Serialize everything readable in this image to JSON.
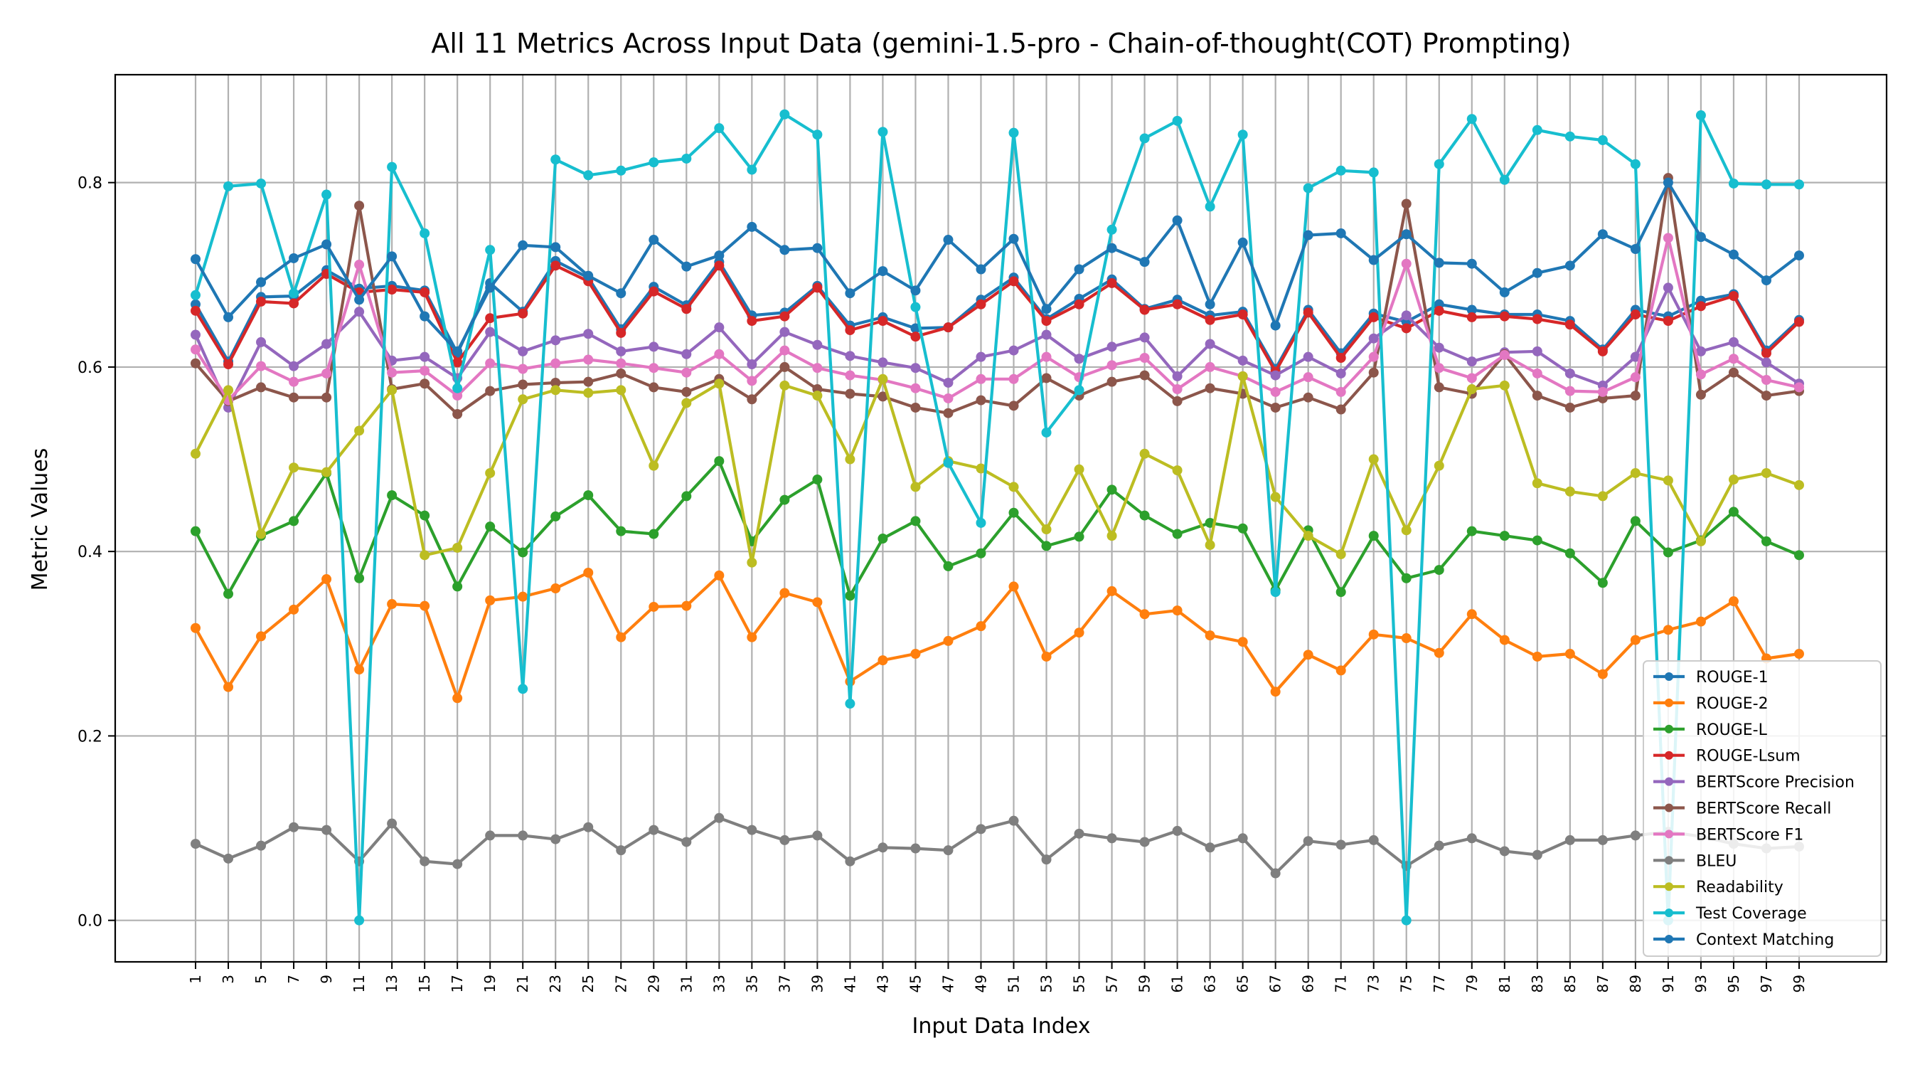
{
  "chart_data": {
    "type": "line",
    "title": "All 11 Metrics Across Input Data (gemini-1.5-pro - Chain-of-thought(COT) Prompting)",
    "xlabel": "Input Data Index",
    "ylabel": "Metric Values",
    "ylim": [
      -0.045,
      0.917
    ],
    "yticks": [
      0.0,
      0.2,
      0.4,
      0.6,
      0.8
    ],
    "ytick_labels": [
      "0.0",
      "0.2",
      "0.4",
      "0.6",
      "0.8"
    ],
    "grid": true,
    "legend_position": "lower-right",
    "x": [
      1,
      3,
      5,
      7,
      9,
      11,
      13,
      15,
      17,
      19,
      21,
      23,
      25,
      27,
      29,
      31,
      33,
      35,
      37,
      39,
      41,
      43,
      45,
      47,
      49,
      51,
      53,
      55,
      57,
      59,
      61,
      63,
      65,
      67,
      69,
      71,
      73,
      75,
      77,
      79,
      81,
      83,
      85,
      87,
      89,
      91,
      93,
      95,
      97,
      99
    ],
    "series": [
      {
        "name": "ROUGE-1",
        "color": "#1f77b4",
        "values": [
          0.668,
          0.606,
          0.676,
          0.677,
          0.705,
          0.685,
          0.688,
          0.683,
          0.615,
          0.691,
          0.66,
          0.715,
          0.697,
          0.641,
          0.687,
          0.667,
          0.714,
          0.656,
          0.659,
          0.688,
          0.645,
          0.654,
          0.642,
          0.643,
          0.673,
          0.697,
          0.652,
          0.674,
          0.695,
          0.663,
          0.673,
          0.656,
          0.66,
          0.598,
          0.662,
          0.615,
          0.658,
          0.649,
          0.668,
          0.662,
          0.657,
          0.657,
          0.65,
          0.619,
          0.662,
          0.655,
          0.672,
          0.679,
          0.618,
          0.651
        ]
      },
      {
        "name": "ROUGE-2",
        "color": "#ff7f0e",
        "values": [
          0.317,
          0.253,
          0.308,
          0.337,
          0.37,
          0.272,
          0.343,
          0.341,
          0.241,
          0.347,
          0.351,
          0.36,
          0.377,
          0.307,
          0.34,
          0.341,
          0.374,
          0.307,
          0.355,
          0.345,
          0.259,
          0.282,
          0.289,
          0.303,
          0.319,
          0.362,
          0.286,
          0.312,
          0.357,
          0.332,
          0.336,
          0.309,
          0.302,
          0.248,
          0.288,
          0.271,
          0.31,
          0.306,
          0.29,
          0.332,
          0.304,
          0.286,
          0.289,
          0.267,
          0.304,
          0.315,
          0.324,
          0.346,
          0.284,
          0.289
        ]
      },
      {
        "name": "ROUGE-L",
        "color": "#2ca02c",
        "values": [
          0.422,
          0.354,
          0.417,
          0.433,
          0.485,
          0.371,
          0.461,
          0.439,
          0.362,
          0.427,
          0.399,
          0.438,
          0.461,
          0.422,
          0.419,
          0.46,
          0.498,
          0.411,
          0.456,
          0.478,
          0.352,
          0.414,
          0.433,
          0.384,
          0.398,
          0.442,
          0.406,
          0.416,
          0.467,
          0.439,
          0.419,
          0.431,
          0.425,
          0.358,
          0.423,
          0.356,
          0.417,
          0.371,
          0.38,
          0.422,
          0.417,
          0.412,
          0.398,
          0.366,
          0.433,
          0.399,
          0.412,
          0.443,
          0.411,
          0.396
        ]
      },
      {
        "name": "ROUGE-Lsum",
        "color": "#d62728",
        "values": [
          0.661,
          0.603,
          0.671,
          0.669,
          0.701,
          0.681,
          0.684,
          0.681,
          0.605,
          0.653,
          0.658,
          0.71,
          0.693,
          0.637,
          0.682,
          0.663,
          0.71,
          0.65,
          0.655,
          0.686,
          0.64,
          0.65,
          0.633,
          0.643,
          0.668,
          0.693,
          0.65,
          0.668,
          0.691,
          0.662,
          0.668,
          0.651,
          0.657,
          0.595,
          0.659,
          0.61,
          0.654,
          0.642,
          0.661,
          0.654,
          0.655,
          0.652,
          0.646,
          0.617,
          0.657,
          0.65,
          0.666,
          0.677,
          0.615,
          0.649
        ]
      },
      {
        "name": "BERTScore Precision",
        "color": "#9467bd",
        "values": [
          0.635,
          0.556,
          0.627,
          0.601,
          0.625,
          0.66,
          0.607,
          0.611,
          0.588,
          0.638,
          0.617,
          0.629,
          0.636,
          0.617,
          0.622,
          0.614,
          0.643,
          0.603,
          0.638,
          0.624,
          0.612,
          0.605,
          0.599,
          0.583,
          0.611,
          0.618,
          0.635,
          0.609,
          0.622,
          0.632,
          0.59,
          0.625,
          0.607,
          0.591,
          0.611,
          0.593,
          0.631,
          0.656,
          0.621,
          0.606,
          0.616,
          0.617,
          0.593,
          0.58,
          0.611,
          0.686,
          0.617,
          0.627,
          0.605,
          0.582
        ]
      },
      {
        "name": "BERTScore Recall",
        "color": "#8c564b",
        "values": [
          0.604,
          0.563,
          0.578,
          0.567,
          0.567,
          0.775,
          0.576,
          0.582,
          0.549,
          0.574,
          0.581,
          0.583,
          0.584,
          0.593,
          0.578,
          0.573,
          0.587,
          0.565,
          0.6,
          0.576,
          0.571,
          0.568,
          0.556,
          0.55,
          0.564,
          0.558,
          0.588,
          0.569,
          0.584,
          0.591,
          0.563,
          0.577,
          0.571,
          0.556,
          0.567,
          0.554,
          0.594,
          0.777,
          0.578,
          0.571,
          0.614,
          0.569,
          0.556,
          0.566,
          0.569,
          0.805,
          0.57,
          0.594,
          0.569,
          0.574
        ]
      },
      {
        "name": "BERTScore F1",
        "color": "#e377c2",
        "values": [
          0.619,
          0.564,
          0.601,
          0.584,
          0.593,
          0.711,
          0.594,
          0.596,
          0.569,
          0.604,
          0.598,
          0.604,
          0.608,
          0.604,
          0.599,
          0.594,
          0.614,
          0.585,
          0.618,
          0.599,
          0.591,
          0.586,
          0.577,
          0.566,
          0.587,
          0.587,
          0.611,
          0.589,
          0.602,
          0.61,
          0.576,
          0.6,
          0.59,
          0.573,
          0.589,
          0.573,
          0.611,
          0.712,
          0.599,
          0.588,
          0.613,
          0.593,
          0.574,
          0.573,
          0.589,
          0.74,
          0.592,
          0.609,
          0.586,
          0.578
        ]
      },
      {
        "name": "BLEU",
        "color": "#7f7f7f",
        "values": [
          0.083,
          0.067,
          0.081,
          0.101,
          0.098,
          0.064,
          0.105,
          0.064,
          0.061,
          0.092,
          0.092,
          0.088,
          0.101,
          0.076,
          0.098,
          0.085,
          0.111,
          0.098,
          0.087,
          0.092,
          0.064,
          0.079,
          0.078,
          0.076,
          0.099,
          0.108,
          0.066,
          0.094,
          0.089,
          0.085,
          0.097,
          0.079,
          0.089,
          0.051,
          0.086,
          0.082,
          0.087,
          0.059,
          0.081,
          0.089,
          0.075,
          0.071,
          0.087,
          0.087,
          0.092,
          0.096,
          0.091,
          0.083,
          0.078,
          0.08
        ]
      },
      {
        "name": "Readability",
        "color": "#bcbd22",
        "values": [
          0.506,
          0.575,
          0.419,
          0.491,
          0.486,
          0.531,
          0.575,
          0.396,
          0.404,
          0.485,
          0.565,
          0.575,
          0.572,
          0.575,
          0.493,
          0.561,
          0.582,
          0.388,
          0.58,
          0.569,
          0.5,
          0.587,
          0.47,
          0.498,
          0.49,
          0.47,
          0.424,
          0.489,
          0.417,
          0.506,
          0.488,
          0.407,
          0.59,
          0.459,
          0.417,
          0.397,
          0.5,
          0.423,
          0.493,
          0.576,
          0.58,
          0.474,
          0.465,
          0.46,
          0.485,
          0.477,
          0.411,
          0.478,
          0.485,
          0.472
        ]
      },
      {
        "name": "Test Coverage",
        "color": "#17becf",
        "values": [
          0.678,
          0.796,
          0.799,
          0.68,
          0.787,
          0.0,
          0.817,
          0.745,
          0.577,
          0.727,
          0.251,
          0.825,
          0.808,
          0.813,
          0.822,
          0.826,
          0.859,
          0.814,
          0.874,
          0.852,
          0.235,
          0.855,
          0.665,
          0.496,
          0.431,
          0.854,
          0.529,
          0.575,
          0.749,
          0.848,
          0.867,
          0.774,
          0.852,
          0.356,
          0.794,
          0.813,
          0.811,
          0.0,
          0.82,
          0.869,
          0.803,
          0.857,
          0.85,
          0.846,
          0.82,
          0.0,
          0.873,
          0.799,
          0.798,
          0.798
        ]
      },
      {
        "name": "Context Matching",
        "color": "#1f77b4",
        "values": [
          0.717,
          0.654,
          0.692,
          0.718,
          0.733,
          0.673,
          0.72,
          0.655,
          0.617,
          0.686,
          0.732,
          0.73,
          0.699,
          0.68,
          0.738,
          0.709,
          0.721,
          0.752,
          0.727,
          0.729,
          0.68,
          0.704,
          0.683,
          0.738,
          0.706,
          0.739,
          0.663,
          0.706,
          0.729,
          0.714,
          0.759,
          0.668,
          0.735,
          0.645,
          0.743,
          0.745,
          0.716,
          0.744,
          0.713,
          0.712,
          0.681,
          0.702,
          0.71,
          0.744,
          0.728,
          0.8,
          0.741,
          0.722,
          0.694,
          0.721
        ]
      }
    ]
  }
}
